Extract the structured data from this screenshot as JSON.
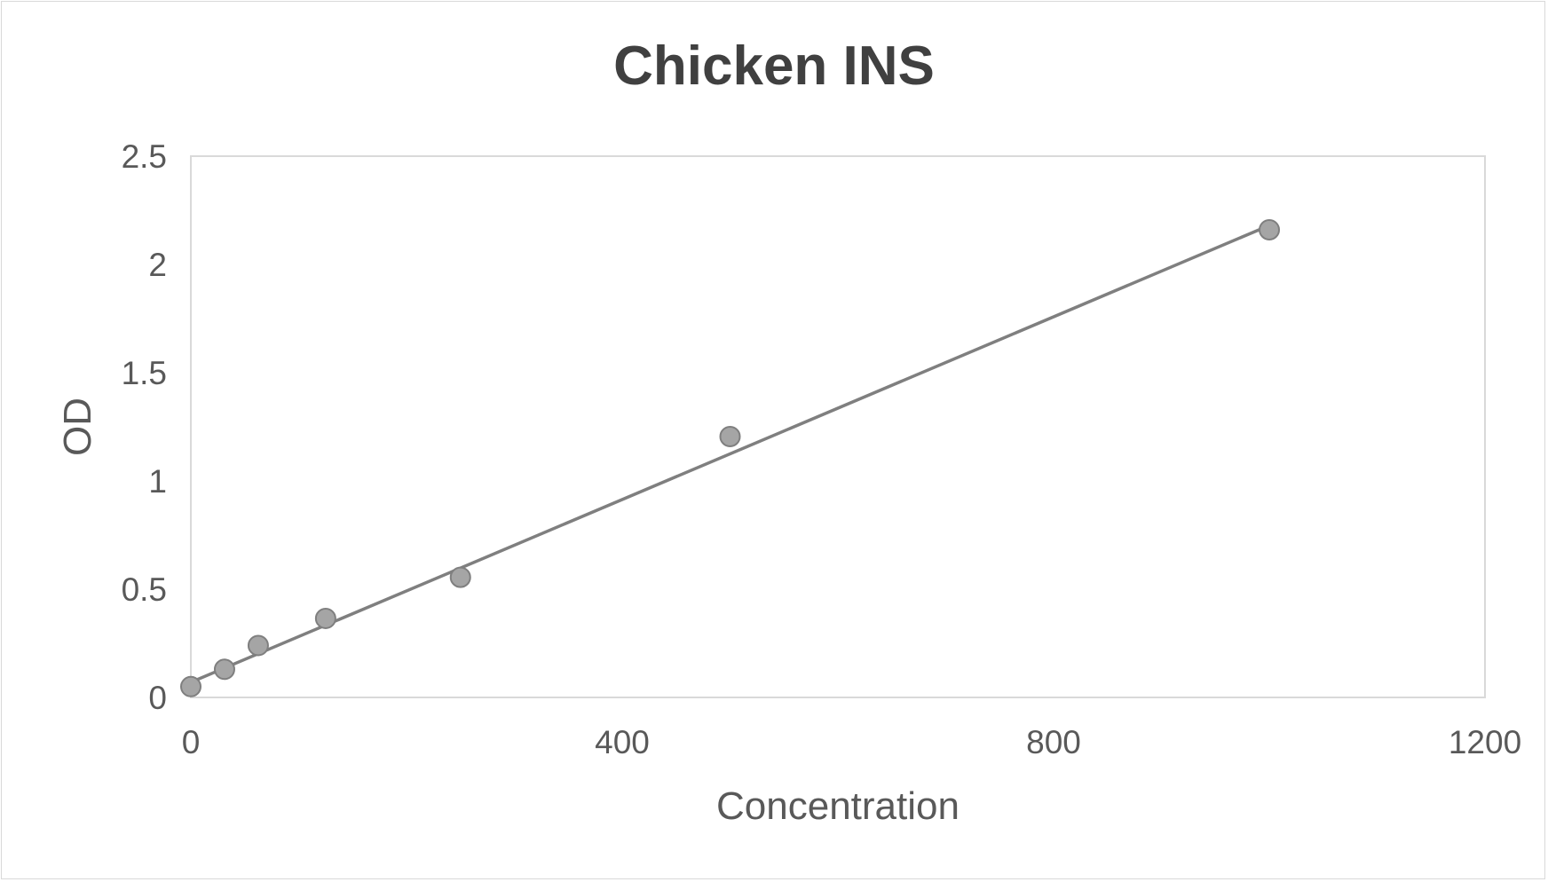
{
  "chart_data": {
    "type": "scatter",
    "title": "Chicken INS",
    "xlabel": "Concentration",
    "ylabel": "OD",
    "xlim": [
      0,
      1200
    ],
    "ylim": [
      0,
      2.5
    ],
    "x_ticks": [
      "0",
      "400",
      "800",
      "1200"
    ],
    "y_ticks": [
      "0",
      "0.5",
      "1",
      "1.5",
      "2",
      "2.5"
    ],
    "grid": false,
    "series": [
      {
        "points": [
          {
            "x": 0,
            "y": 0.05
          },
          {
            "x": 31.25,
            "y": 0.13
          },
          {
            "x": 62.5,
            "y": 0.24
          },
          {
            "x": 125,
            "y": 0.365
          },
          {
            "x": 250,
            "y": 0.555
          },
          {
            "x": 500,
            "y": 1.205
          },
          {
            "x": 1000,
            "y": 2.16
          }
        ],
        "marker_color": "#a5a5a5",
        "marker_edge_color": "#7f7f7f"
      }
    ],
    "trendline": {
      "type": "linear",
      "x_range": [
        0,
        1000
      ],
      "y_start": 0.07,
      "y_end": 2.18,
      "color": "#7f7f7f"
    },
    "plot_border_color": "#d9d9d9"
  }
}
